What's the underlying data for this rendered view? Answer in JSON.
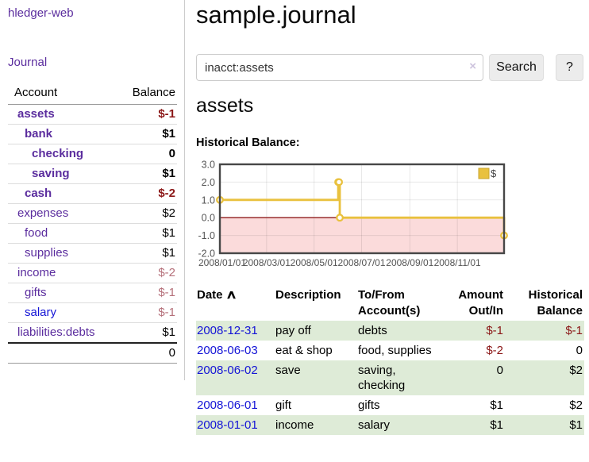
{
  "app": {
    "brand": "hledger-web"
  },
  "nav": {
    "journal": "Journal"
  },
  "icons": {
    "sort_ascending": "∧",
    "clear": "×"
  },
  "sidebar": {
    "headers": {
      "account": "Account",
      "balance": "Balance"
    },
    "accounts": [
      {
        "name": "assets",
        "balance": "$-1"
      },
      {
        "name": "bank",
        "balance": "$1"
      },
      {
        "name": "checking",
        "balance": "0"
      },
      {
        "name": "saving",
        "balance": "$1"
      },
      {
        "name": "cash",
        "balance": "$-2"
      },
      {
        "name": "expenses",
        "balance": "$2"
      },
      {
        "name": "food",
        "balance": "$1"
      },
      {
        "name": "supplies",
        "balance": "$1"
      },
      {
        "name": "income",
        "balance": "$-2"
      },
      {
        "name": "gifts",
        "balance": "$-1"
      },
      {
        "name": "salary",
        "balance": "$-1"
      },
      {
        "name": "liabilities:debts",
        "balance": "$1"
      }
    ],
    "total": "0"
  },
  "header": {
    "title": "sample.journal"
  },
  "search": {
    "value": "inacct:assets",
    "button": "Search",
    "help": "?"
  },
  "account_page": {
    "title": "assets",
    "chart_label": "Historical Balance:"
  },
  "chart_data": {
    "type": "line",
    "title": "Historical Balance",
    "step": true,
    "legend": [
      {
        "label": "$",
        "color": "#e9c13e"
      }
    ],
    "legend_position": "top-right",
    "x_range": [
      "2008-01-01",
      "2008-12-31"
    ],
    "ylim": [
      -2.0,
      3.0
    ],
    "y_ticks": [
      3.0,
      2.0,
      1.0,
      0.0,
      -1.0,
      -2.0
    ],
    "x_ticks": [
      {
        "date": "2008-01-01",
        "label": "2008/01/01"
      },
      {
        "date": "2008-03-01",
        "label": "2008/03/01"
      },
      {
        "date": "2008-05-01",
        "label": "2008/05/01"
      },
      {
        "date": "2008-07-01",
        "label": "2008/07/01"
      },
      {
        "date": "2008-09-01",
        "label": "2008/09/01"
      },
      {
        "date": "2008-11-01",
        "label": "2008/11/01"
      }
    ],
    "series": [
      {
        "name": "$",
        "points": [
          {
            "date": "2008-01-01",
            "value": 1
          },
          {
            "date": "2008-06-01",
            "value": 2
          },
          {
            "date": "2008-06-02",
            "value": 2
          },
          {
            "date": "2008-06-03",
            "value": 0
          },
          {
            "date": "2008-12-31",
            "value": -1
          }
        ]
      }
    ],
    "colors": {
      "line": "#e9c13e",
      "marker_fill": "#ffffff",
      "negative_region": "#fbdbdb",
      "zero_line": "#8f1a1a",
      "grid": "#dedede",
      "border": "#474747",
      "axis_text": "#545454"
    }
  },
  "register": {
    "headers": {
      "date": "Date",
      "description": "Description",
      "accounts": "To/From Account(s)",
      "amount": "Amount Out/In",
      "balance": "Historical Balance"
    },
    "rows": [
      {
        "date": "2008-12-31",
        "description": "pay off",
        "accounts": "debts",
        "amount": "$-1",
        "balance": "$-1"
      },
      {
        "date": "2008-06-03",
        "description": "eat & shop",
        "accounts": "food, supplies",
        "amount": "$-2",
        "balance": "0"
      },
      {
        "date": "2008-06-02",
        "description": "save",
        "accounts": "saving, checking",
        "amount": "0",
        "balance": "$2"
      },
      {
        "date": "2008-06-01",
        "description": "gift",
        "accounts": "gifts",
        "amount": "$1",
        "balance": "$2"
      },
      {
        "date": "2008-01-01",
        "description": "income",
        "accounts": "salary",
        "amount": "$1",
        "balance": "$1"
      }
    ]
  }
}
